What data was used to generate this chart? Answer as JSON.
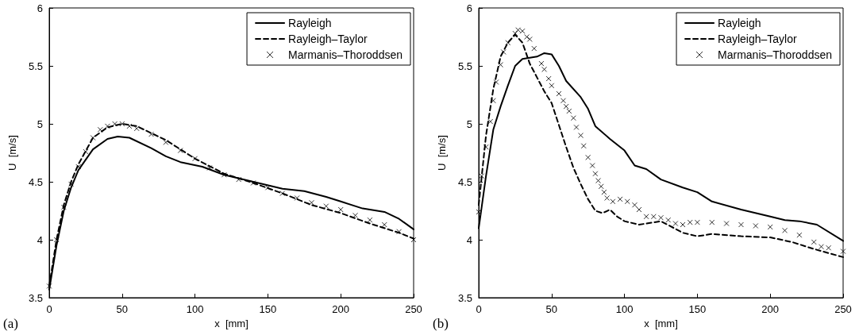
{
  "chart_data": [
    {
      "type": "line",
      "xlabel": "x  [mm]",
      "ylabel": "U  [m/s]",
      "annotations": [
        "(a)"
      ],
      "xlim": [
        0,
        250
      ],
      "xticks": [
        0,
        50,
        100,
        150,
        200,
        250
      ],
      "ylim": [
        3.5,
        6
      ],
      "yticks": [
        3.5,
        4,
        4.5,
        5,
        5.5,
        6
      ],
      "grid": false,
      "legend": "top right",
      "series": [
        {
          "name": "Rayleigh",
          "color": "#000000",
          "line_style": "solid",
          "marker": "none",
          "x": [
            0,
            5,
            10,
            15,
            20,
            30,
            40,
            47,
            55,
            70,
            80,
            90,
            105,
            120,
            140,
            160,
            175,
            190,
            200,
            215,
            230,
            240,
            250
          ],
          "values": [
            3.57,
            3.95,
            4.25,
            4.45,
            4.6,
            4.78,
            4.87,
            4.89,
            4.88,
            4.79,
            4.72,
            4.67,
            4.63,
            4.56,
            4.5,
            4.44,
            4.42,
            4.37,
            4.33,
            4.27,
            4.24,
            4.18,
            4.09
          ]
        },
        {
          "name": "Rayleigh–Taylor",
          "color": "#000000",
          "line_style": "dashed",
          "marker": "none",
          "x": [
            0,
            5,
            10,
            15,
            20,
            30,
            40,
            50,
            60,
            80,
            100,
            120,
            140,
            160,
            180,
            200,
            220,
            240,
            250
          ],
          "values": [
            3.6,
            4.0,
            4.3,
            4.5,
            4.65,
            4.88,
            4.97,
            5.0,
            4.98,
            4.86,
            4.7,
            4.57,
            4.49,
            4.4,
            4.3,
            4.23,
            4.14,
            4.06,
            4.01
          ]
        },
        {
          "name": "Marmanis–Thoroddsen",
          "type": "scatter",
          "color": "#000000",
          "marker": "cross",
          "x": [
            0,
            5,
            10,
            15,
            20,
            25,
            30,
            35,
            40,
            45,
            50,
            55,
            60,
            70,
            80,
            90,
            100,
            110,
            120,
            130,
            140,
            150,
            160,
            170,
            180,
            190,
            200,
            210,
            220,
            230,
            240,
            250
          ],
          "values": [
            3.6,
            4.0,
            4.28,
            4.48,
            4.63,
            4.76,
            4.88,
            4.95,
            4.98,
            5.0,
            5.0,
            4.98,
            4.96,
            4.91,
            4.84,
            4.77,
            4.7,
            4.62,
            4.56,
            4.52,
            4.49,
            4.45,
            4.4,
            4.36,
            4.32,
            4.29,
            4.26,
            4.21,
            4.17,
            4.13,
            4.07,
            4.0
          ]
        }
      ]
    },
    {
      "type": "line",
      "xlabel": "x  [mm]",
      "ylabel": "U  [m/s]",
      "annotations": [
        "(b)"
      ],
      "xlim": [
        0,
        250
      ],
      "xticks": [
        0,
        50,
        100,
        150,
        200,
        250
      ],
      "ylim": [
        3.5,
        6
      ],
      "yticks": [
        3.5,
        4,
        4.5,
        5,
        5.5,
        6
      ],
      "grid": false,
      "legend": "top right",
      "series": [
        {
          "name": "Rayleigh",
          "color": "#000000",
          "line_style": "solid",
          "marker": "none",
          "x": [
            0,
            5,
            10,
            15,
            20,
            25,
            30,
            35,
            40,
            45,
            50,
            55,
            60,
            70,
            75,
            80,
            90,
            100,
            107,
            115,
            125,
            140,
            150,
            160,
            180,
            200,
            210,
            220,
            232,
            250
          ],
          "values": [
            4.1,
            4.55,
            4.95,
            5.15,
            5.33,
            5.5,
            5.56,
            5.57,
            5.58,
            5.61,
            5.6,
            5.5,
            5.37,
            5.23,
            5.13,
            4.98,
            4.87,
            4.77,
            4.64,
            4.61,
            4.52,
            4.45,
            4.41,
            4.33,
            4.26,
            4.2,
            4.17,
            4.16,
            4.13,
            3.99
          ]
        },
        {
          "name": "Rayleigh–Taylor",
          "color": "#000000",
          "line_style": "dashed",
          "marker": "none",
          "x": [
            0,
            5,
            10,
            15,
            20,
            25,
            30,
            35,
            40,
            45,
            50,
            55,
            60,
            65,
            70,
            75,
            80,
            85,
            90,
            95,
            100,
            110,
            125,
            140,
            150,
            160,
            180,
            200,
            215,
            230,
            250
          ],
          "values": [
            4.3,
            4.9,
            5.3,
            5.58,
            5.7,
            5.77,
            5.7,
            5.52,
            5.4,
            5.28,
            5.18,
            4.99,
            4.8,
            4.62,
            4.48,
            4.35,
            4.25,
            4.23,
            4.26,
            4.2,
            4.16,
            4.13,
            4.16,
            4.06,
            4.03,
            4.05,
            4.03,
            4.02,
            3.98,
            3.92,
            3.85
          ]
        },
        {
          "name": "Marmanis–Thoroddsen",
          "type": "scatter",
          "color": "#000000",
          "marker": "cross",
          "x": [
            0,
            2,
            5,
            8,
            10,
            12,
            15,
            17,
            20,
            25,
            27,
            30,
            33,
            35,
            38,
            43,
            45,
            48,
            50,
            55,
            58,
            60,
            62,
            65,
            67,
            70,
            72,
            75,
            78,
            80,
            82,
            84,
            86,
            88,
            92,
            97,
            102,
            107,
            110,
            115,
            120,
            125,
            130,
            135,
            140,
            145,
            150,
            160,
            170,
            180,
            190,
            200,
            210,
            220,
            230,
            235,
            240,
            250
          ],
          "values": [
            4.24,
            4.55,
            4.8,
            5.02,
            5.2,
            5.36,
            5.51,
            5.62,
            5.7,
            5.78,
            5.81,
            5.8,
            5.75,
            5.73,
            5.65,
            5.52,
            5.47,
            5.39,
            5.33,
            5.26,
            5.2,
            5.15,
            5.11,
            5.05,
            4.97,
            4.9,
            4.81,
            4.71,
            4.64,
            4.57,
            4.51,
            4.46,
            4.41,
            4.36,
            4.33,
            4.35,
            4.33,
            4.3,
            4.26,
            4.2,
            4.2,
            4.19,
            4.17,
            4.14,
            4.13,
            4.15,
            4.15,
            4.15,
            4.14,
            4.13,
            4.12,
            4.11,
            4.08,
            4.04,
            3.98,
            3.94,
            3.93,
            3.9
          ]
        }
      ]
    }
  ]
}
